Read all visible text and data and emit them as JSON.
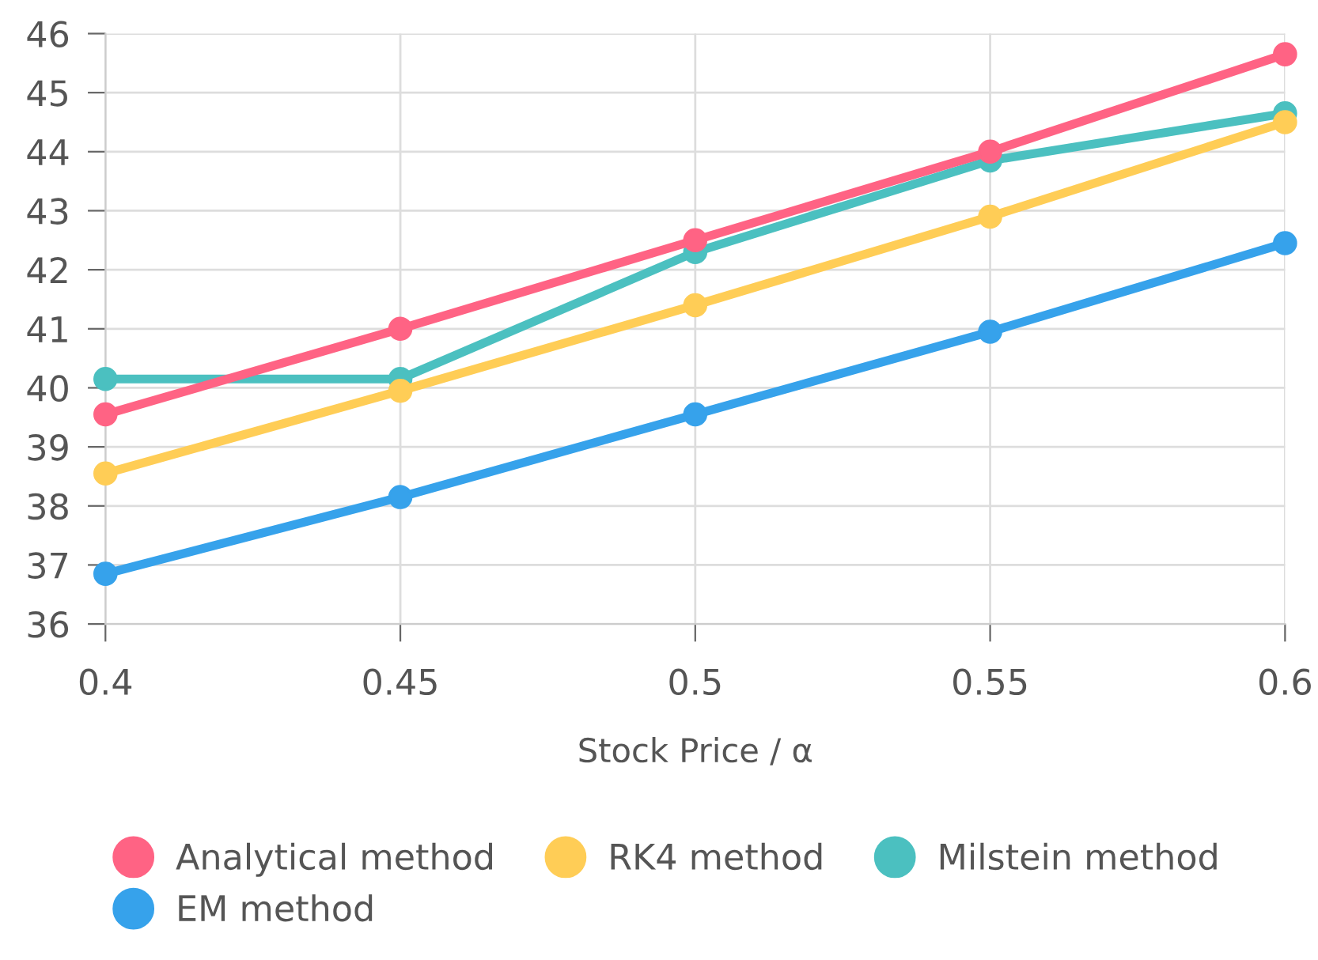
{
  "chart_data": {
    "type": "line",
    "xlabel": "Stock Price / α",
    "x": [
      0.4,
      0.45,
      0.5,
      0.55,
      0.6
    ],
    "series": [
      {
        "name": "Analytical method",
        "color": "#ff6384",
        "values": [
          39.55,
          41,
          42.5,
          44,
          45.65
        ]
      },
      {
        "name": "EM method",
        "color": "#36a2eb",
        "values": [
          36.85,
          38.15,
          39.55,
          40.95,
          42.45
        ]
      },
      {
        "name": "RK4 method",
        "color": "#ffcd56",
        "values": [
          38.55,
          39.95,
          41.4,
          42.9,
          44.5
        ]
      },
      {
        "name": "Milstein method",
        "color": "#4bc0c0",
        "values": [
          40.15,
          40.15,
          42.3,
          43.85,
          44.65
        ]
      }
    ],
    "xlim": [
      0.4,
      0.6
    ],
    "xticks": [
      0.4,
      0.45,
      0.5,
      0.55,
      0.6
    ],
    "ylim": [
      36,
      46
    ],
    "yticks": [
      36,
      37,
      38,
      39,
      40,
      41,
      42,
      43,
      44,
      45,
      46
    ],
    "grid": true,
    "legend": "bottom",
    "marker": "circle",
    "line_style": "solid"
  }
}
